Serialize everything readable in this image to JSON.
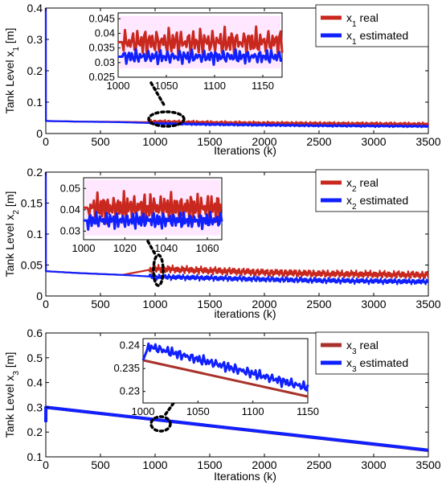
{
  "colors": {
    "real": "#c8281e",
    "estimated": "#1020ff",
    "real_x3": "#a8322a",
    "inset_bg": "#ffe7ff",
    "axis": "#000000",
    "background": "#ffffff"
  },
  "chart_data": [
    {
      "id": "p1",
      "type": "line",
      "ylabel_main": "Tank Level x",
      "ylabel_sub": "1",
      "ylabel_unit": " [m]",
      "xlabel": "Iterations (k)",
      "xlim": [
        0,
        3500
      ],
      "ylim": [
        0,
        0.4
      ],
      "xticks": [
        0,
        500,
        1000,
        1500,
        2000,
        2500,
        3000,
        3500
      ],
      "xtick_labels": [
        "0",
        "500",
        "1000",
        "1500",
        "2000",
        "2500",
        "3000",
        "3500"
      ],
      "yticks": [
        0,
        0.1,
        0.2,
        0.3,
        0.4
      ],
      "ytick_labels": [
        "0",
        "0.1",
        "0.2",
        "0.3",
        "0.4"
      ],
      "legend_position": "top-right",
      "series": [
        {
          "key": "real",
          "label_main": "x",
          "label_sub": "1",
          "label_rest": " real",
          "color": "#c8281e",
          "x": [
            0,
            1,
            300,
            700,
            1000,
            1500,
            2000,
            2500,
            3000,
            3500
          ],
          "y": [
            0.4,
            0.04,
            0.038,
            0.037,
            0.036,
            0.033,
            0.031,
            0.03,
            0.029,
            0.028
          ],
          "noise": 0.006,
          "bias": 0.002
        },
        {
          "key": "estimated",
          "label_main": "x",
          "label_sub": "1",
          "label_rest": " estimated",
          "color": "#1020ff",
          "x": [
            0,
            1,
            300,
            700,
            1000,
            1500,
            2000,
            2500,
            3000,
            3500
          ],
          "y": [
            0.4,
            0.04,
            0.038,
            0.036,
            0.033,
            0.03,
            0.028,
            0.026,
            0.025,
            0.024
          ],
          "noise": 0.004,
          "bias": -0.001
        }
      ],
      "inset": {
        "xlim": [
          1000,
          1170
        ],
        "ylim": [
          0.025,
          0.047
        ],
        "xticks": [
          1000,
          1050,
          1100,
          1150
        ],
        "xtick_labels": [
          "1000",
          "1050",
          "1100",
          "1150"
        ],
        "yticks": [
          0.025,
          0.03,
          0.035,
          0.04,
          0.045
        ],
        "ytick_labels": [
          "0.025",
          "0.03",
          "0.035",
          "0.04",
          "0.045"
        ],
        "real": {
          "x": [
            1000,
            1170
          ],
          "y": [
            0.037,
            0.037
          ],
          "noise": 0.0055
        },
        "estimated": {
          "x": [
            1000,
            1170
          ],
          "y": [
            0.032,
            0.032
          ],
          "noise": 0.0028
        },
        "real_band": [
          0.028,
          0.046
        ]
      }
    },
    {
      "id": "p2",
      "type": "line",
      "ylabel_main": "Tank Level x",
      "ylabel_sub": "2",
      "ylabel_unit": " [m]",
      "xlabel": "iterations (k)",
      "xlim": [
        0,
        3500
      ],
      "ylim": [
        0,
        0.2
      ],
      "xticks": [
        0,
        500,
        1000,
        1500,
        2000,
        2500,
        3000,
        3500
      ],
      "xtick_labels": [
        "0",
        "500",
        "1000",
        "1500",
        "2000",
        "2500",
        "3000",
        "3500"
      ],
      "yticks": [
        0,
        0.05,
        0.1,
        0.15,
        0.2
      ],
      "ytick_labels": [
        "0",
        "0.05",
        "0.1",
        "0.15",
        "0.2"
      ],
      "legend_position": "top-right",
      "series": [
        {
          "key": "real",
          "label_main": "x",
          "label_sub": "2",
          "label_rest": " real",
          "color": "#c8281e",
          "x": [
            0,
            1,
            300,
            700,
            1000,
            1500,
            2000,
            2500,
            3000,
            3500
          ],
          "y": [
            0.2,
            0.04,
            0.037,
            0.034,
            0.044,
            0.041,
            0.038,
            0.036,
            0.035,
            0.034
          ],
          "noise": 0.007,
          "bias": 0.0
        },
        {
          "key": "estimated",
          "label_main": "x",
          "label_sub": "2",
          "label_rest": " estimated",
          "color": "#1020ff",
          "x": [
            0,
            1,
            300,
            700,
            1000,
            1500,
            2000,
            2500,
            3000,
            3500
          ],
          "y": [
            0.2,
            0.04,
            0.037,
            0.034,
            0.031,
            0.029,
            0.027,
            0.025,
            0.024,
            0.023
          ],
          "noise": 0.005,
          "bias": 0.0
        }
      ],
      "inset": {
        "xlim": [
          1000,
          1067
        ],
        "ylim": [
          0.026,
          0.055
        ],
        "xticks": [
          1000,
          1020,
          1040,
          1060
        ],
        "xtick_labels": [
          "1000",
          "1020",
          "1040",
          "1060"
        ],
        "yticks": [
          0.03,
          0.04,
          0.05
        ],
        "ytick_labels": [
          "0.03",
          "0.04",
          "0.05"
        ],
        "real": {
          "x": [
            1000,
            1067
          ],
          "y": [
            0.041,
            0.041
          ],
          "noise": 0.008
        },
        "estimated": {
          "x": [
            1000,
            1067
          ],
          "y": [
            0.035,
            0.035
          ],
          "noise": 0.0045
        },
        "real_band": [
          0.028,
          0.054
        ]
      }
    },
    {
      "id": "p3",
      "type": "line",
      "ylabel_main": "Tank Level x",
      "ylabel_sub": "3",
      "ylabel_unit": " [m]",
      "xlabel": "Iterations (k)",
      "xlim": [
        0,
        3500
      ],
      "ylim": [
        0.1,
        0.6
      ],
      "xticks": [
        0,
        500,
        1000,
        1500,
        2000,
        2500,
        3000,
        3500
      ],
      "xtick_labels": [
        "0",
        "500",
        "1000",
        "1500",
        "2000",
        "2500",
        "3000",
        "3500"
      ],
      "yticks": [
        0.1,
        0.2,
        0.3,
        0.4,
        0.5,
        0.6
      ],
      "ytick_labels": [
        "0.1",
        "0.2",
        "0.3",
        "0.4",
        "0.5",
        "0.6"
      ],
      "legend_position": "top-right",
      "series": [
        {
          "key": "real",
          "label_main": "x",
          "label_sub": "3",
          "label_rest": " real",
          "color": "#a8322a",
          "x": [
            0,
            3500
          ],
          "y": [
            0.3,
            0.126
          ],
          "noise": 0.0,
          "bias": 0.0
        },
        {
          "key": "estimated",
          "label_main": "x",
          "label_sub": "3",
          "label_rest": " estimated",
          "color": "#1020ff",
          "x": [
            0,
            1,
            3500
          ],
          "y": [
            0.24,
            0.3,
            0.127
          ],
          "noise": 0.0,
          "bias": 0.0
        }
      ],
      "inset": {
        "xlim": [
          1000,
          1150
        ],
        "ylim": [
          0.2275,
          0.2415
        ],
        "xticks": [
          1000,
          1050,
          1100,
          1150
        ],
        "xtick_labels": [
          "1000",
          "1050",
          "1100",
          "1150"
        ],
        "yticks": [
          0.23,
          0.235,
          0.24
        ],
        "ytick_labels": [
          "0.23",
          "0.235",
          "0.24"
        ],
        "real": {
          "x": [
            1000,
            1150
          ],
          "y": [
            0.2368,
            0.2289
          ],
          "noise": 0.0
        },
        "estimated": {
          "x": [
            1000,
            1005,
            1150
          ],
          "y": [
            0.2368,
            0.2398,
            0.2308
          ],
          "noise": 0.0013
        },
        "real_band": null
      }
    }
  ]
}
